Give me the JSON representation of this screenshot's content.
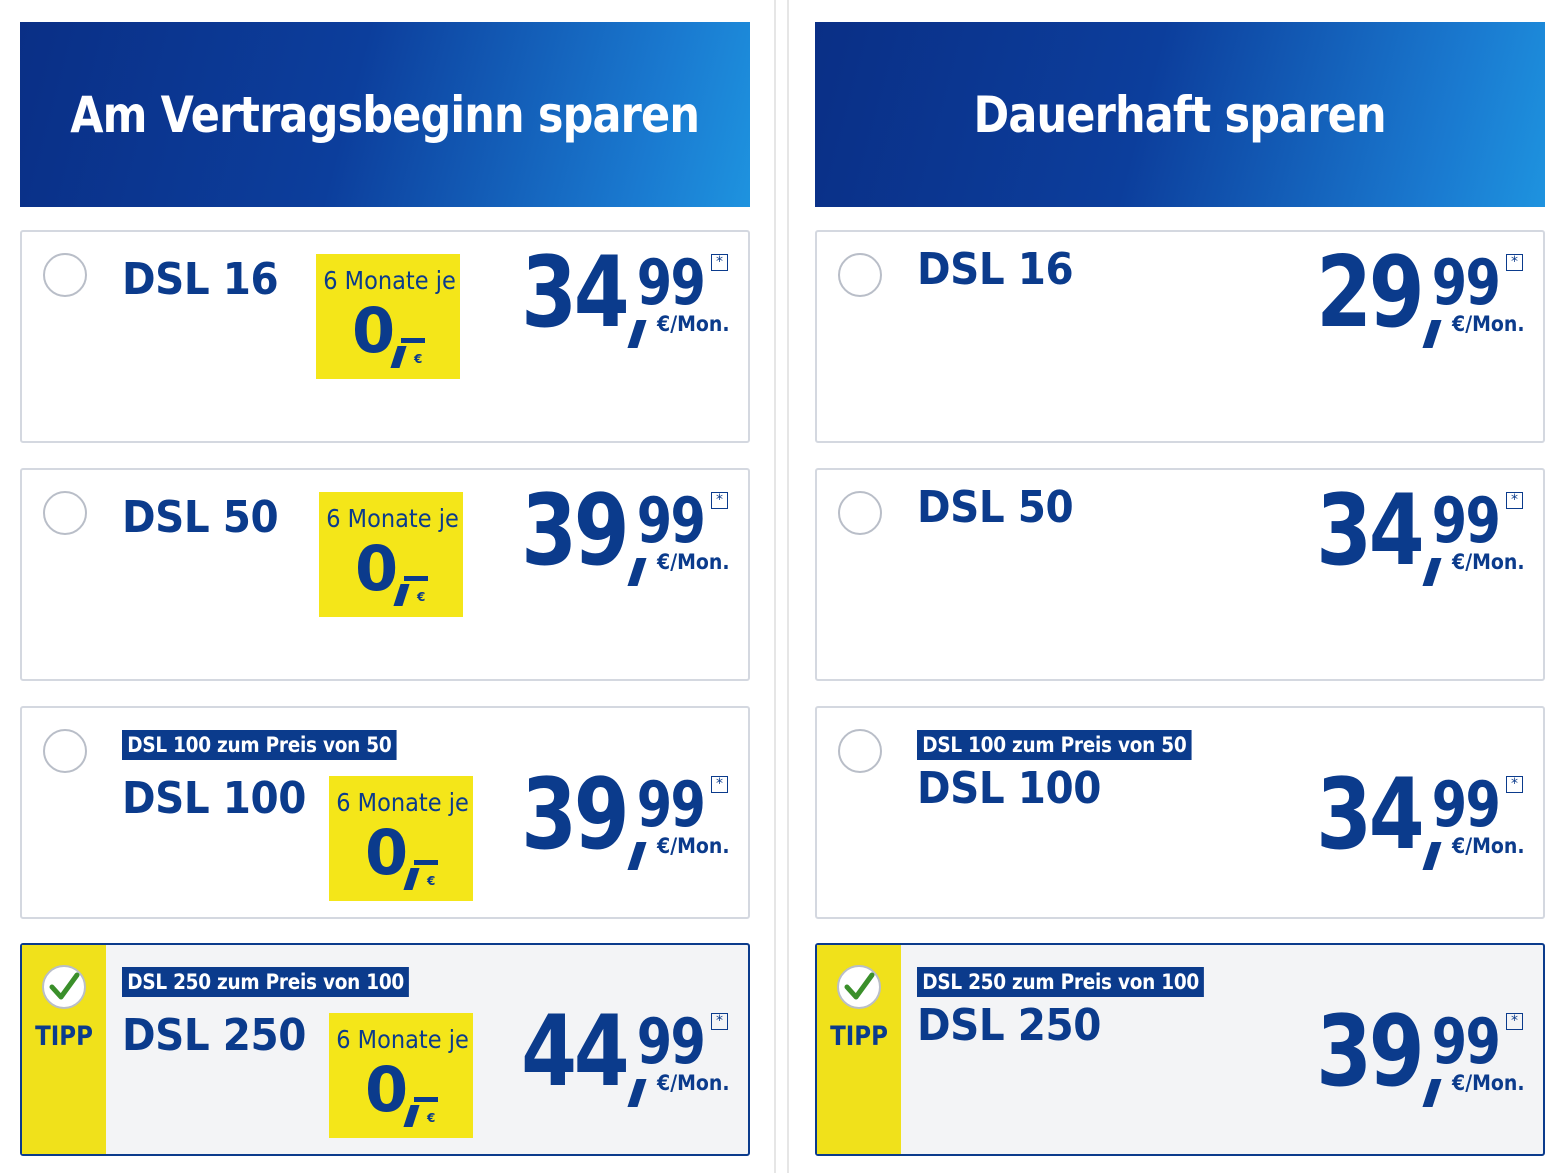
{
  "left": {
    "title": "Am Vertragsbeginn sparen",
    "cards": [
      {
        "promo": "",
        "name": "DSL 16",
        "badge_top": "6 Monate je",
        "badge_value": "0",
        "badge_currency": "€",
        "euros": "34",
        "cents": "99",
        "star": "*",
        "unit": "€/Mon."
      },
      {
        "promo": "",
        "name": "DSL 50",
        "badge_top": "6 Monate je",
        "badge_value": "0",
        "badge_currency": "€",
        "euros": "39",
        "cents": "99",
        "star": "*",
        "unit": "€/Mon."
      },
      {
        "promo": "DSL 100 zum Preis von 50",
        "name": "DSL 100",
        "badge_top": "6 Monate je",
        "badge_value": "0",
        "badge_currency": "€",
        "euros": "39",
        "cents": "99",
        "star": "*",
        "unit": "€/Mon."
      },
      {
        "promo": "DSL 250 zum Preis von 100",
        "name": "DSL 250",
        "tipp": "TIPP",
        "badge_top": "6 Monate je",
        "badge_value": "0",
        "badge_currency": "€",
        "euros": "44",
        "cents": "99",
        "star": "*",
        "unit": "€/Mon."
      }
    ]
  },
  "right": {
    "title": "Dauerhaft sparen",
    "cards": [
      {
        "promo": "",
        "name": "DSL 16",
        "euros": "29",
        "cents": "99",
        "star": "*",
        "unit": "€/Mon."
      },
      {
        "promo": "",
        "name": "DSL 50",
        "euros": "34",
        "cents": "99",
        "star": "*",
        "unit": "€/Mon."
      },
      {
        "promo": "DSL 100 zum Preis von 50",
        "name": "DSL 100",
        "euros": "34",
        "cents": "99",
        "star": "*",
        "unit": "€/Mon."
      },
      {
        "promo": "DSL 250 zum Preis von 100",
        "name": "DSL 250",
        "tipp": "TIPP",
        "euros": "39",
        "cents": "99",
        "star": "*",
        "unit": "€/Mon."
      }
    ]
  },
  "colors": {
    "brand_blue": "#0b3b8c",
    "badge_yellow": "#f4e619",
    "tipp_yellow": "#f0e11b",
    "check_green": "#3a8f2a"
  },
  "icons": {
    "selected_tariff": "checkmark-icon"
  }
}
